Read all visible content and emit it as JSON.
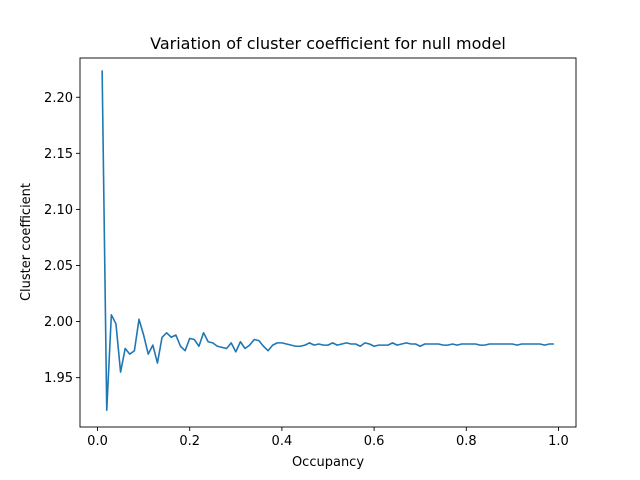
{
  "chart_data": {
    "type": "line",
    "title": "Variation of cluster coefficient for null model",
    "xlabel": "Occupancy",
    "ylabel": "Cluster coefficient",
    "xlim": [
      -0.038,
      1.038
    ],
    "ylim": [
      1.906,
      2.235
    ],
    "xticks": [
      0.0,
      0.2,
      0.4,
      0.6,
      0.8,
      1.0
    ],
    "xtick_labels": [
      "0.0",
      "0.2",
      "0.4",
      "0.6",
      "0.8",
      "1.0"
    ],
    "yticks": [
      1.95,
      2.0,
      2.05,
      2.1,
      2.15,
      2.2
    ],
    "ytick_labels": [
      "1.95",
      "2.00",
      "2.05",
      "2.10",
      "2.15",
      "2.20"
    ],
    "grid": false,
    "line_color": "#1f77b4",
    "series": [
      {
        "x": [
          0.01,
          0.02,
          0.03,
          0.04,
          0.05,
          0.06,
          0.07,
          0.08,
          0.09,
          0.1,
          0.11,
          0.12,
          0.13,
          0.14,
          0.15,
          0.16,
          0.17,
          0.18,
          0.19,
          0.2,
          0.21,
          0.22,
          0.23,
          0.24,
          0.25,
          0.26,
          0.27,
          0.28,
          0.29,
          0.3,
          0.31,
          0.32,
          0.33,
          0.34,
          0.35,
          0.36,
          0.37,
          0.38,
          0.39,
          0.4,
          0.41,
          0.42,
          0.43,
          0.44,
          0.45,
          0.46,
          0.47,
          0.48,
          0.49,
          0.5,
          0.51,
          0.52,
          0.53,
          0.54,
          0.55,
          0.56,
          0.57,
          0.58,
          0.59,
          0.6,
          0.61,
          0.62,
          0.63,
          0.64,
          0.65,
          0.66,
          0.67,
          0.68,
          0.69,
          0.7,
          0.71,
          0.72,
          0.73,
          0.74,
          0.75,
          0.76,
          0.77,
          0.78,
          0.79,
          0.8,
          0.81,
          0.82,
          0.83,
          0.84,
          0.85,
          0.86,
          0.87,
          0.88,
          0.89,
          0.9,
          0.91,
          0.92,
          0.93,
          0.94,
          0.95,
          0.96,
          0.97,
          0.98,
          0.99
        ],
        "values": [
          2.224,
          1.921,
          2.006,
          1.998,
          1.955,
          1.976,
          1.971,
          1.974,
          2.002,
          1.988,
          1.971,
          1.979,
          1.963,
          1.986,
          1.99,
          1.986,
          1.988,
          1.978,
          1.974,
          1.985,
          1.984,
          1.978,
          1.99,
          1.982,
          1.981,
          1.978,
          1.977,
          1.976,
          1.981,
          1.973,
          1.982,
          1.976,
          1.979,
          1.984,
          1.983,
          1.978,
          1.974,
          1.979,
          1.981,
          1.981,
          1.98,
          1.979,
          1.978,
          1.978,
          1.979,
          1.981,
          1.979,
          1.98,
          1.979,
          1.979,
          1.981,
          1.979,
          1.98,
          1.981,
          1.98,
          1.98,
          1.978,
          1.981,
          1.98,
          1.978,
          1.979,
          1.979,
          1.979,
          1.981,
          1.979,
          1.98,
          1.981,
          1.98,
          1.98,
          1.978,
          1.98,
          1.98,
          1.98,
          1.98,
          1.979,
          1.979,
          1.98,
          1.979,
          1.98,
          1.98,
          1.98,
          1.98,
          1.979,
          1.979,
          1.98,
          1.98,
          1.98,
          1.98,
          1.98,
          1.98,
          1.979,
          1.98,
          1.98,
          1.98,
          1.98,
          1.98,
          1.979,
          1.98,
          1.98
        ]
      }
    ]
  }
}
